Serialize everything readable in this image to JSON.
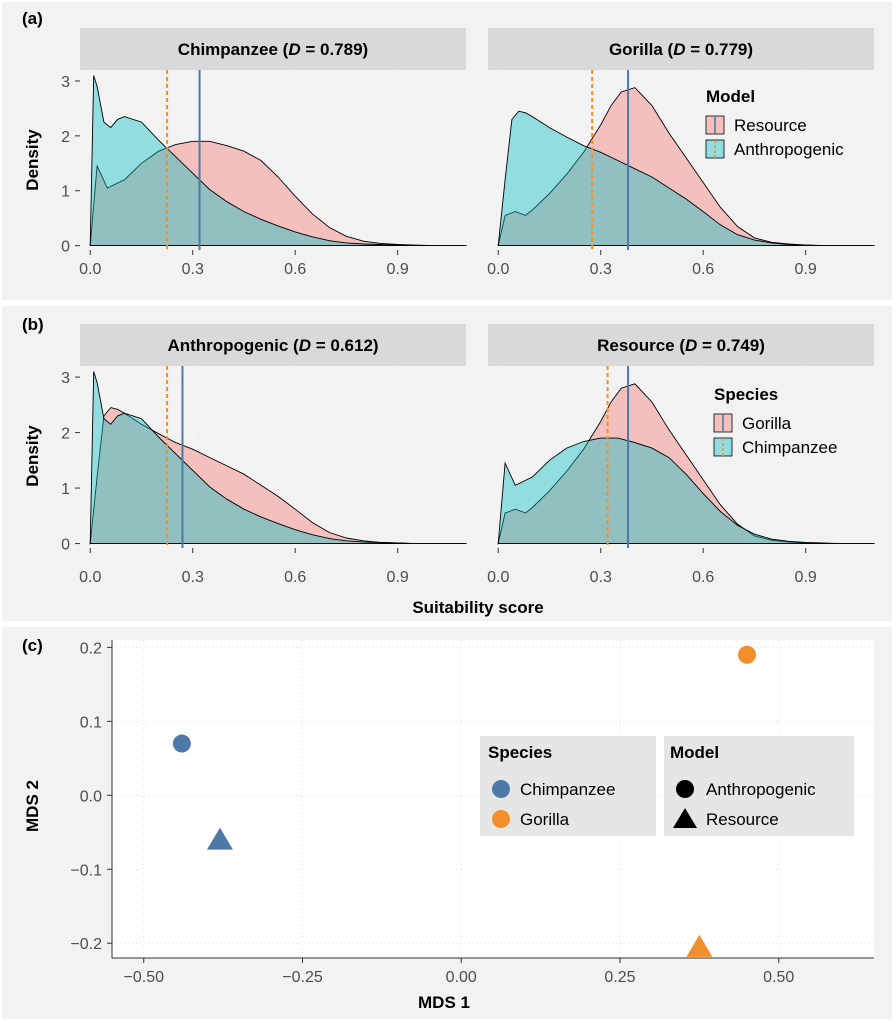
{
  "colors": {
    "red_fill": "#F8766D",
    "cyan_fill": "#00BFC4",
    "blue_line": "#4E79A7",
    "orange_line": "#F28E2B",
    "chimp_point": "#4E79A7",
    "gorilla_point": "#F28E2B",
    "outer_bg": "#F2F2F2",
    "strip_bg": "#D9D9D9"
  },
  "chart_data": [
    {
      "panel_label": "(a)",
      "type": "area",
      "title": "",
      "ylabel": "Density",
      "xlabel": "",
      "xlim": [
        -0.03,
        1.1
      ],
      "ylim": [
        -0.08,
        3.2
      ],
      "x_ticks": [
        "0.0",
        "0.3",
        "0.6",
        "0.9"
      ],
      "y_ticks": [
        "0",
        "1",
        "2",
        "3"
      ],
      "legend": {
        "title": "Model",
        "entries": [
          "Resource",
          "Anthropogenic"
        ],
        "placement": "right of facet 2"
      },
      "facets": [
        {
          "strip_prefix": "Chimpanzee (",
          "strip_italic": "D",
          "strip_suffix": " = 0.789)",
          "vline_solid": 0.32,
          "vline_dashed": 0.225,
          "series": [
            {
              "name": "Resource",
              "x": [
                0.0,
                0.02,
                0.05,
                0.1,
                0.15,
                0.2,
                0.25,
                0.3,
                0.35,
                0.4,
                0.45,
                0.5,
                0.55,
                0.6,
                0.65,
                0.7,
                0.75,
                0.8,
                0.85,
                0.9,
                0.95,
                1.0,
                1.05,
                1.1
              ],
              "y": [
                0.0,
                1.45,
                1.05,
                1.2,
                1.5,
                1.72,
                1.84,
                1.9,
                1.9,
                1.82,
                1.72,
                1.55,
                1.25,
                0.9,
                0.58,
                0.33,
                0.17,
                0.08,
                0.04,
                0.02,
                0.01,
                0.0,
                0.0,
                0.0
              ]
            },
            {
              "name": "Anthropogenic",
              "x": [
                0.0,
                0.01,
                0.02,
                0.04,
                0.06,
                0.08,
                0.1,
                0.15,
                0.2,
                0.25,
                0.3,
                0.35,
                0.4,
                0.45,
                0.5,
                0.55,
                0.6,
                0.65,
                0.7,
                0.75,
                0.8,
                0.85,
                0.9,
                0.95,
                1.0,
                1.05,
                1.1
              ],
              "y": [
                0.0,
                3.1,
                2.9,
                2.25,
                2.15,
                2.3,
                2.35,
                2.25,
                1.92,
                1.62,
                1.32,
                1.02,
                0.8,
                0.62,
                0.48,
                0.36,
                0.25,
                0.16,
                0.09,
                0.05,
                0.03,
                0.02,
                0.01,
                0.0,
                0.0,
                0.0,
                0.0
              ]
            }
          ]
        },
        {
          "strip_prefix": "Gorilla (",
          "strip_italic": "D",
          "strip_suffix": " = 0.779)",
          "vline_solid": 0.38,
          "vline_dashed": 0.275,
          "series": [
            {
              "name": "Resource",
              "x": [
                0.0,
                0.02,
                0.05,
                0.08,
                0.1,
                0.15,
                0.2,
                0.25,
                0.3,
                0.33,
                0.36,
                0.4,
                0.45,
                0.5,
                0.55,
                0.6,
                0.65,
                0.7,
                0.75,
                0.8,
                0.85,
                0.9,
                0.95,
                1.0,
                1.05,
                1.1
              ],
              "y": [
                0.0,
                0.55,
                0.62,
                0.55,
                0.65,
                0.95,
                1.3,
                1.7,
                2.2,
                2.55,
                2.8,
                2.88,
                2.55,
                2.05,
                1.6,
                1.15,
                0.7,
                0.35,
                0.14,
                0.06,
                0.03,
                0.01,
                0.0,
                0.0,
                0.0,
                0.0
              ]
            },
            {
              "name": "Anthropogenic",
              "x": [
                0.0,
                0.02,
                0.04,
                0.06,
                0.08,
                0.1,
                0.15,
                0.2,
                0.25,
                0.3,
                0.35,
                0.4,
                0.45,
                0.5,
                0.55,
                0.6,
                0.65,
                0.7,
                0.75,
                0.8,
                0.85,
                0.9,
                0.95,
                1.0,
                1.05,
                1.1
              ],
              "y": [
                0.0,
                1.2,
                2.3,
                2.45,
                2.42,
                2.35,
                2.15,
                1.98,
                1.82,
                1.7,
                1.55,
                1.4,
                1.25,
                1.05,
                0.85,
                0.62,
                0.38,
                0.2,
                0.1,
                0.05,
                0.02,
                0.01,
                0.0,
                0.0,
                0.0,
                0.0
              ]
            }
          ]
        }
      ]
    },
    {
      "panel_label": "(b)",
      "type": "area",
      "title": "",
      "ylabel": "Density",
      "xlabel": "Suitability score",
      "xlim": [
        -0.03,
        1.1
      ],
      "ylim": [
        -0.08,
        3.2
      ],
      "x_ticks": [
        "0.0",
        "0.3",
        "0.6",
        "0.9"
      ],
      "y_ticks": [
        "0",
        "1",
        "2",
        "3"
      ],
      "legend": {
        "title": "Species",
        "entries": [
          "Gorilla",
          "Chimpanzee"
        ],
        "placement": "right of facet 2"
      },
      "facets": [
        {
          "strip_prefix": "Anthropogenic (",
          "strip_italic": "D",
          "strip_suffix": " = 0.612)",
          "vline_solid": 0.27,
          "vline_dashed": 0.225,
          "series": [
            {
              "name": "Gorilla",
              "x": [
                0.0,
                0.02,
                0.04,
                0.06,
                0.08,
                0.1,
                0.15,
                0.2,
                0.25,
                0.3,
                0.35,
                0.4,
                0.45,
                0.5,
                0.55,
                0.6,
                0.65,
                0.7,
                0.75,
                0.8,
                0.85,
                0.9,
                0.95,
                1.0,
                1.05,
                1.1
              ],
              "y": [
                0.0,
                1.2,
                2.3,
                2.45,
                2.42,
                2.35,
                2.15,
                1.98,
                1.82,
                1.7,
                1.55,
                1.4,
                1.25,
                1.05,
                0.85,
                0.62,
                0.38,
                0.2,
                0.1,
                0.05,
                0.02,
                0.01,
                0.0,
                0.0,
                0.0,
                0.0
              ]
            },
            {
              "name": "Chimpanzee",
              "x": [
                0.0,
                0.01,
                0.02,
                0.04,
                0.06,
                0.08,
                0.1,
                0.15,
                0.2,
                0.25,
                0.3,
                0.35,
                0.4,
                0.45,
                0.5,
                0.55,
                0.6,
                0.65,
                0.7,
                0.75,
                0.8,
                0.85,
                0.9,
                0.95,
                1.0,
                1.05,
                1.1
              ],
              "y": [
                0.0,
                3.1,
                2.9,
                2.25,
                2.15,
                2.3,
                2.35,
                2.25,
                1.92,
                1.62,
                1.32,
                1.02,
                0.8,
                0.62,
                0.48,
                0.36,
                0.25,
                0.16,
                0.09,
                0.05,
                0.03,
                0.02,
                0.01,
                0.0,
                0.0,
                0.0,
                0.0
              ]
            }
          ]
        },
        {
          "strip_prefix": "Resource (",
          "strip_italic": "D",
          "strip_suffix": " = 0.749)",
          "vline_solid": 0.38,
          "vline_dashed": 0.32,
          "series": [
            {
              "name": "Gorilla",
              "x": [
                0.0,
                0.02,
                0.05,
                0.08,
                0.1,
                0.15,
                0.2,
                0.25,
                0.3,
                0.33,
                0.36,
                0.4,
                0.45,
                0.5,
                0.55,
                0.6,
                0.65,
                0.7,
                0.75,
                0.8,
                0.85,
                0.9,
                0.95,
                1.0,
                1.05,
                1.1
              ],
              "y": [
                0.0,
                0.55,
                0.62,
                0.55,
                0.65,
                0.95,
                1.3,
                1.7,
                2.2,
                2.55,
                2.8,
                2.88,
                2.55,
                2.05,
                1.6,
                1.15,
                0.7,
                0.35,
                0.14,
                0.06,
                0.03,
                0.01,
                0.0,
                0.0,
                0.0,
                0.0
              ]
            },
            {
              "name": "Chimpanzee",
              "x": [
                0.0,
                0.02,
                0.05,
                0.1,
                0.15,
                0.2,
                0.25,
                0.3,
                0.35,
                0.4,
                0.45,
                0.5,
                0.55,
                0.6,
                0.65,
                0.7,
                0.75,
                0.8,
                0.85,
                0.9,
                0.95,
                1.0,
                1.05,
                1.1
              ],
              "y": [
                0.0,
                1.45,
                1.05,
                1.2,
                1.5,
                1.72,
                1.84,
                1.9,
                1.9,
                1.82,
                1.72,
                1.55,
                1.25,
                0.9,
                0.58,
                0.33,
                0.17,
                0.08,
                0.04,
                0.02,
                0.01,
                0.0,
                0.0,
                0.0
              ]
            }
          ]
        }
      ]
    },
    {
      "panel_label": "(c)",
      "type": "scatter",
      "title": "",
      "xlabel": "MDS 1",
      "ylabel": "MDS 2",
      "xlim": [
        -0.55,
        0.65
      ],
      "ylim": [
        -0.22,
        0.21
      ],
      "x_ticks": [
        -0.5,
        -0.25,
        0.0,
        0.25,
        0.5
      ],
      "x_tick_labels": [
        "−0.50",
        "−0.25",
        "0.00",
        "0.25",
        "0.50"
      ],
      "y_ticks": [
        0.2,
        0.1,
        0.0,
        -0.1,
        -0.2
      ],
      "y_tick_labels": [
        "0.2",
        "0.1",
        "0.0",
        "−0.1",
        "−0.2"
      ],
      "points": [
        {
          "species": "Chimpanzee",
          "model": "Anthropogenic",
          "x": -0.44,
          "y": 0.07
        },
        {
          "species": "Chimpanzee",
          "model": "Resource",
          "x": -0.38,
          "y": -0.06
        },
        {
          "species": "Gorilla",
          "model": "Anthropogenic",
          "x": 0.45,
          "y": 0.19
        },
        {
          "species": "Gorilla",
          "model": "Resource",
          "x": 0.375,
          "y": -0.205
        }
      ],
      "legend_species": {
        "title": "Species",
        "entries": [
          "Chimpanzee",
          "Gorilla"
        ]
      },
      "legend_model": {
        "title": "Model",
        "entries": [
          "Anthropogenic",
          "Resource"
        ]
      }
    }
  ]
}
